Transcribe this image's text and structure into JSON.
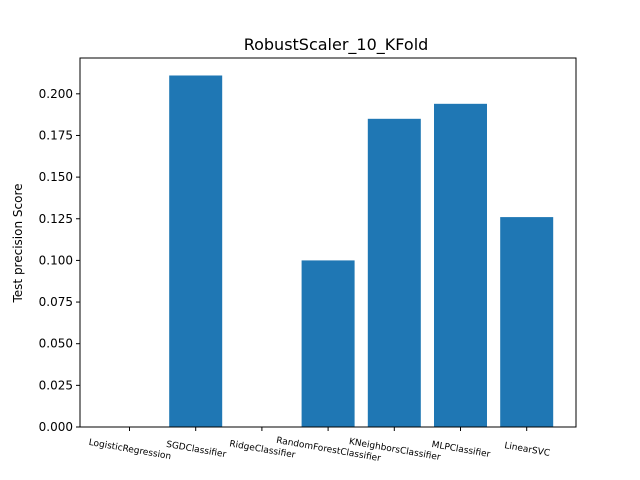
{
  "chart_data": {
    "type": "bar",
    "title": "RobustScaler_10_KFold",
    "xlabel": "",
    "ylabel": "Test precision Score",
    "categories": [
      "LogisticRegression",
      "SGDClassifier",
      "RidgeClassifier",
      "RandomForestClassifier",
      "KNeighborsClassifier",
      "MLPClassifier",
      "LinearSVC"
    ],
    "values": [
      0.0,
      0.211,
      0.0,
      0.1,
      0.185,
      0.194,
      0.126
    ],
    "ylim": [
      0,
      0.2215
    ],
    "yticks": [
      "0.000",
      "0.025",
      "0.050",
      "0.075",
      "0.100",
      "0.125",
      "0.150",
      "0.175",
      "0.200"
    ],
    "bar_color": "#1f77b4",
    "grid": false,
    "xtick_rotation": "slanted"
  }
}
